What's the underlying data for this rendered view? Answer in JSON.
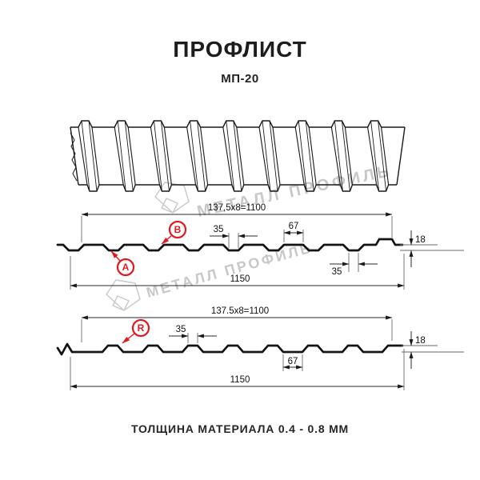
{
  "title": "ПРОФЛИСТ",
  "subtitle": "МП-20",
  "footer": "ТОЛЩИНА МАТЕРИАЛА 0.4 - 0.8 ММ",
  "watermark": {
    "text": "МЕТАЛЛ ПРОФИЛЬ",
    "color": "#c8c8c8"
  },
  "colors": {
    "accent_red": "#e3181e",
    "line_black": "#1a1a1a",
    "watermark_gray": "#c8c8c8"
  },
  "profiles": {
    "top": {
      "pitch_formula": "137,5x8=1100",
      "overall_width": "1150",
      "groove_top_width": "35",
      "flat_width": "67",
      "height": "18",
      "groove_bottom_width": "35",
      "labels": {
        "a": "A",
        "b": "B"
      }
    },
    "bottom": {
      "pitch_formula": "137.5x8=1100",
      "overall_width": "1150",
      "rib_top_width": "35",
      "flat_width": "67",
      "height": "18",
      "labels": {
        "r": "R"
      }
    }
  }
}
